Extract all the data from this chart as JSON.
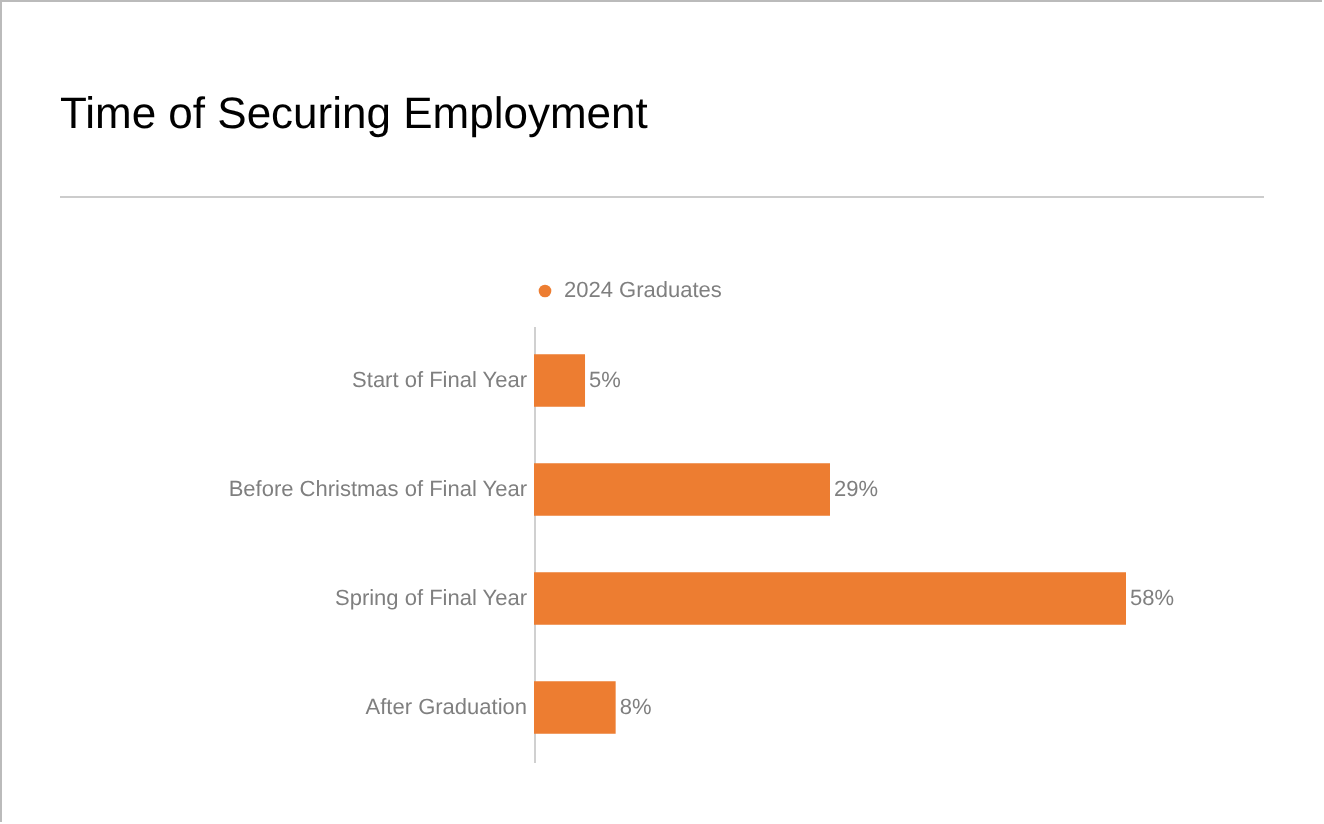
{
  "chart_data": {
    "type": "bar",
    "orientation": "horizontal",
    "title": "Time of Securing Employment",
    "categories": [
      "Start of Final Year",
      "Before Christmas of Final Year",
      "Spring of Final Year",
      "After Graduation"
    ],
    "series": [
      {
        "name": "2024 Graduates",
        "color": "#ed7d31",
        "values": [
          5,
          29,
          58,
          8
        ],
        "value_labels": [
          "5%",
          "29%",
          "58%",
          "8%"
        ]
      }
    ],
    "legend": "top",
    "marker": "circle"
  }
}
